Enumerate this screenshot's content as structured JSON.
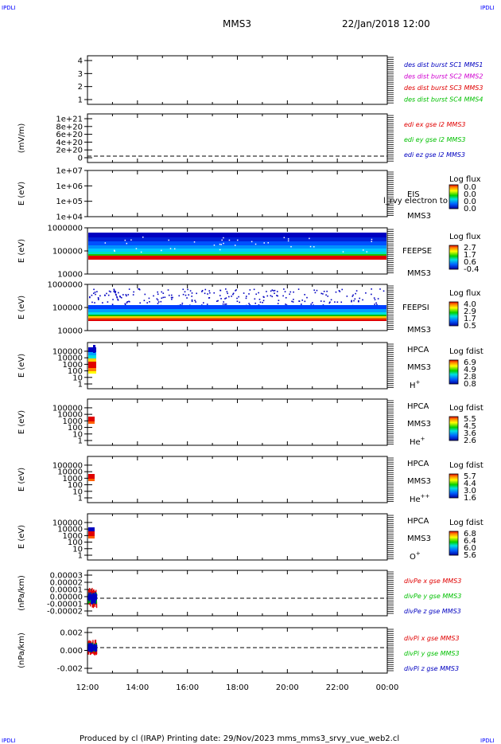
{
  "header": {
    "mission": "MMS3",
    "datetime": "22/Jan/2018 12:00"
  },
  "corner_label": "IPDLI",
  "footer": "Produced by cl (IRAP)   Printing date: 29/Nov/2023   mms_mms3_srvy_vue_web2.cl",
  "colors": {
    "red": "#e00000",
    "green": "#00c000",
    "blue": "#0000c0",
    "magenta": "#d000d0"
  },
  "chart_data": {
    "type": "multi-panel",
    "xaxis": {
      "range": [
        "12:00",
        "00:00"
      ],
      "tick_labels": [
        "12:00",
        "14:00",
        "16:00",
        "18:00",
        "20:00",
        "22:00",
        "00:00"
      ]
    },
    "panels": [
      {
        "id": "des",
        "type": "line",
        "ylabel": "",
        "ytick_labels": [
          "4",
          "3",
          "2",
          "1"
        ],
        "legend": [
          "des dist burst SC1 MMS1",
          "des dist burst SC2 MMS2",
          "des dist burst SC3 MMS3",
          "des dist burst SC4 MMS4"
        ],
        "legend_colors": [
          "#0000c0",
          "#d000d0",
          "#e00000",
          "#00c000"
        ]
      },
      {
        "id": "edi",
        "type": "line",
        "ylabel": "(mV/m)",
        "ytick_labels": [
          "1e+21",
          "8e+20",
          "6e+20",
          "4e+20",
          "2e+20",
          "0"
        ],
        "legend": [
          "edi ex gse l2 MMS3",
          "edi ey gse l2 MMS3",
          "edi ez gse l2 MMS3"
        ],
        "legend_colors": [
          "#e00000",
          "#00c000",
          "#0000c0"
        ]
      },
      {
        "id": "eis",
        "type": "heatmap",
        "ylabel": "E (eV)",
        "ytick_labels": [
          "1e+07",
          "1e+06",
          "1e+05",
          "1e+04"
        ],
        "instrument": [
          "EIS",
          "MMS3"
        ],
        "overlay": "l_rvy electron to",
        "cbar_title": "Log flux",
        "cbar_ticks": [
          "0.0",
          "0.0",
          "0.0",
          "0.0"
        ]
      },
      {
        "id": "feepse",
        "type": "heatmap",
        "ylabel": "E (eV)",
        "ytick_labels": [
          "1000000",
          "100000",
          "10000"
        ],
        "instrument": [
          "FEEPSE",
          "MMS3"
        ],
        "cbar_title": "Log flux",
        "cbar_ticks": [
          "2.7",
          "1.7",
          "0.6",
          "-0.4"
        ]
      },
      {
        "id": "feepsi",
        "type": "heatmap",
        "ylabel": "E (eV)",
        "ytick_labels": [
          "1000000",
          "100000",
          "10000"
        ],
        "instrument": [
          "FEEPSI",
          "MMS3"
        ],
        "cbar_title": "Log flux",
        "cbar_ticks": [
          "4.0",
          "2.9",
          "1.7",
          "0.5"
        ]
      },
      {
        "id": "hpca_h",
        "type": "heatmap",
        "ylabel": "E (eV)",
        "ytick_labels": [
          "100000",
          "10000",
          "1000",
          "100",
          "10",
          "1"
        ],
        "instrument": [
          "HPCA",
          "MMS3",
          "H+"
        ],
        "cbar_title": "Log fdist",
        "cbar_ticks": [
          "6.9",
          "4.9",
          "2.8",
          "0.8"
        ]
      },
      {
        "id": "hpca_he",
        "type": "heatmap",
        "ylabel": "E (eV)",
        "ytick_labels": [
          "100000",
          "10000",
          "1000",
          "100",
          "10",
          "1"
        ],
        "instrument": [
          "HPCA",
          "MMS3",
          "He+"
        ],
        "cbar_title": "Log fdist",
        "cbar_ticks": [
          "5.5",
          "4.5",
          "3.6",
          "2.6"
        ]
      },
      {
        "id": "hpca_hepp",
        "type": "heatmap",
        "ylabel": "E (eV)",
        "ytick_labels": [
          "100000",
          "10000",
          "1000",
          "100",
          "10",
          "1"
        ],
        "instrument": [
          "HPCA",
          "MMS3",
          "He++"
        ],
        "cbar_title": "Log fdist",
        "cbar_ticks": [
          "5.7",
          "4.4",
          "3.0",
          "1.6"
        ]
      },
      {
        "id": "hpca_o",
        "type": "heatmap",
        "ylabel": "E (eV)",
        "ytick_labels": [
          "100000",
          "10000",
          "1000",
          "100",
          "10",
          "1"
        ],
        "instrument": [
          "HPCA",
          "MMS3",
          "O+"
        ],
        "cbar_title": "Log fdist",
        "cbar_ticks": [
          "6.8",
          "6.4",
          "6.0",
          "5.6"
        ]
      },
      {
        "id": "divpe",
        "type": "line",
        "ylabel": "(nPa/km)",
        "ytick_labels": [
          "0.00003",
          "0.00002",
          "0.00001",
          "0.00000",
          "-0.00001",
          "-0.00002"
        ],
        "legend": [
          "divPe x gse MMS3",
          "divPe y gse MMS3",
          "divPe z gse MMS3"
        ],
        "legend_colors": [
          "#e00000",
          "#00c000",
          "#0000c0"
        ]
      },
      {
        "id": "divpi",
        "type": "line",
        "ylabel": "(nPa/km)",
        "ytick_labels": [
          "0.002",
          "0.000",
          "-0.002"
        ],
        "legend": [
          "divPi x gse MMS3",
          "divPi y gse MMS3",
          "divPi z gse MMS3"
        ],
        "legend_colors": [
          "#e00000",
          "#00c000",
          "#0000c0"
        ]
      }
    ]
  }
}
